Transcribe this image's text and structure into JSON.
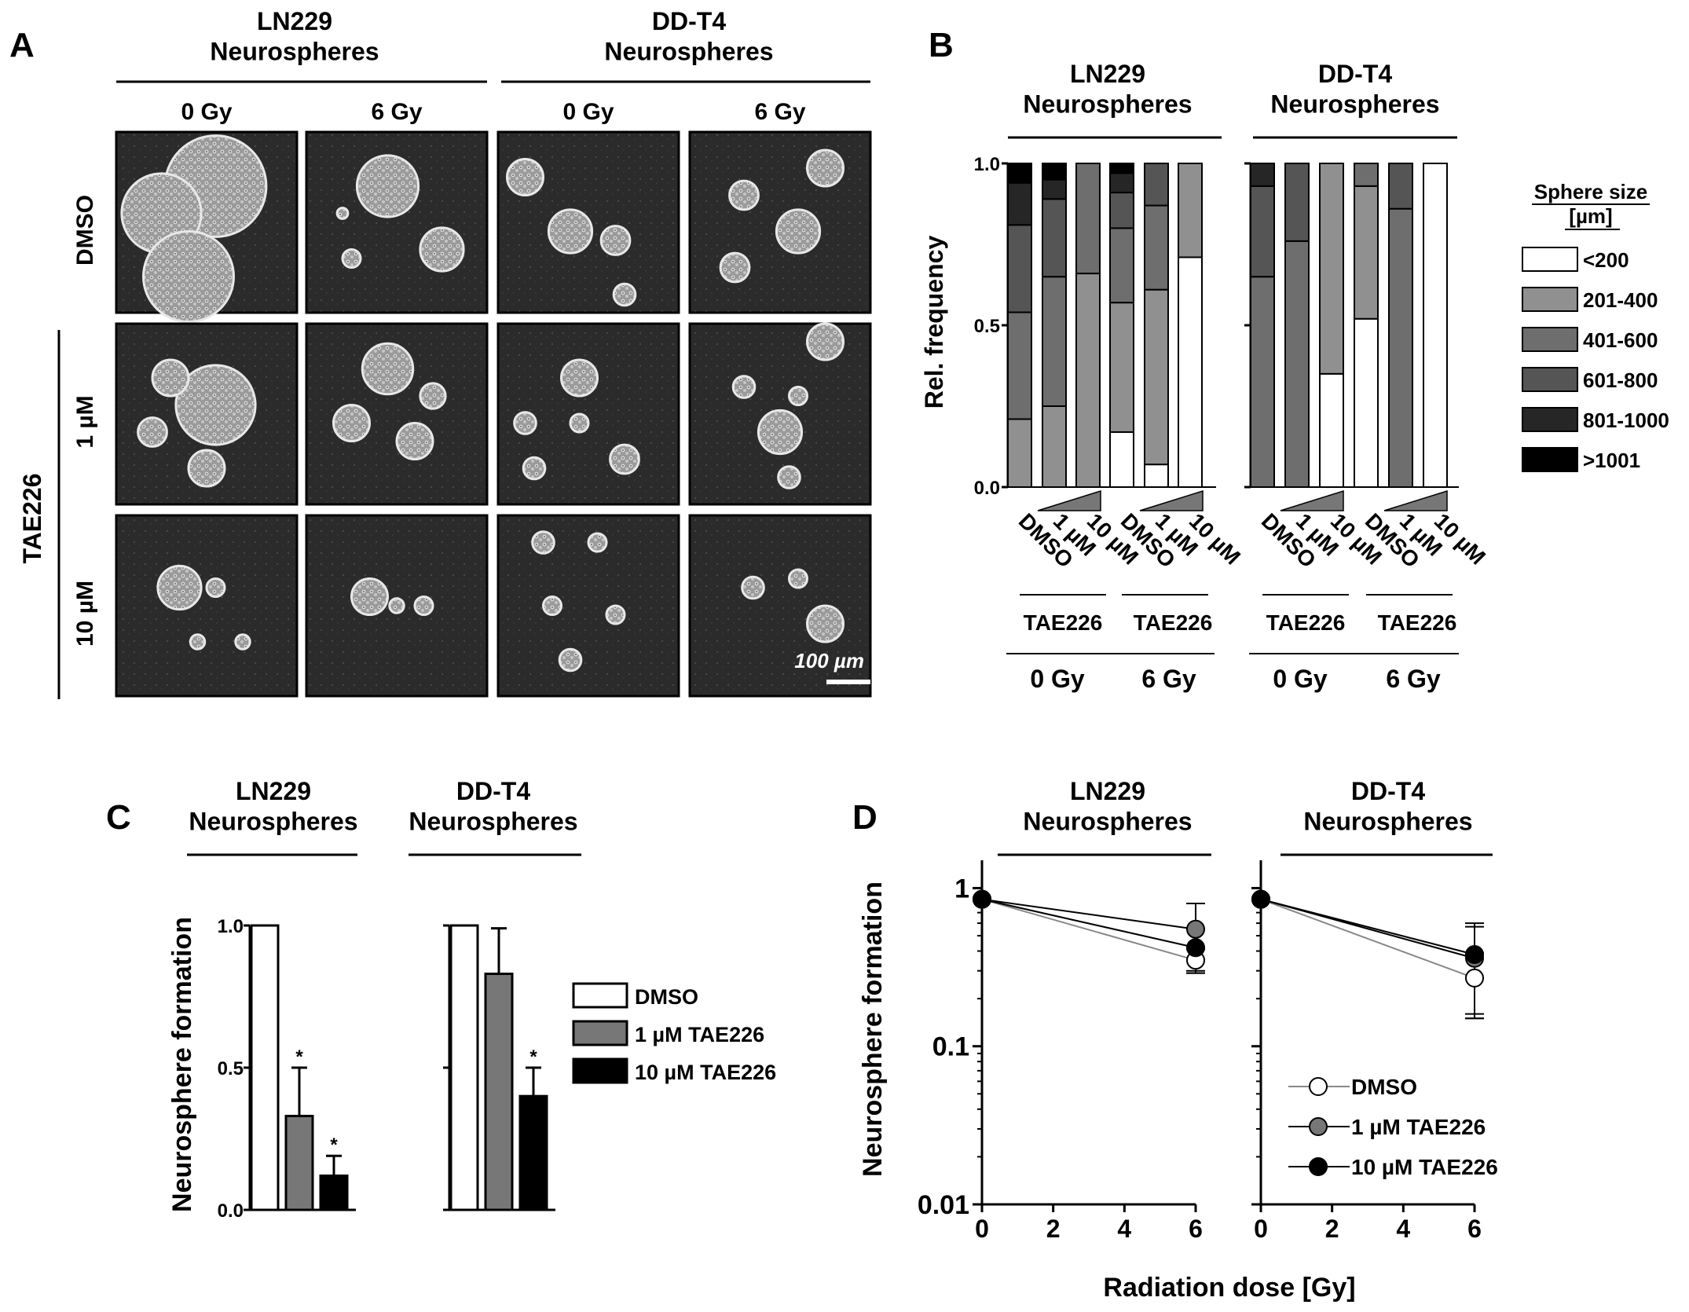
{
  "panels": {
    "a": {
      "letter": "A",
      "groups": [
        "LN229\nNeurospheres",
        "DD-T4\nNeurospheres"
      ],
      "columns": [
        "0 Gy",
        "6 Gy",
        "0 Gy",
        "6 Gy"
      ],
      "rows": [
        "DMSO",
        "1 µM",
        "10 µM"
      ],
      "drug_label": "TAE226",
      "scale_bar": "100 µm"
    },
    "b": {
      "letter": "B",
      "titles": [
        "LN229\nNeurospheres",
        "DD-T4\nNeurospheres"
      ],
      "ylabel": "Rel. frequency",
      "yticks": [
        "0.0",
        "0.5",
        "1.0"
      ],
      "xcat": [
        "DMSO",
        "1 µM",
        "10 µM"
      ],
      "drug_label": "TAE226",
      "dose_labels": [
        "0 Gy",
        "6 Gy"
      ],
      "legend_title": "Sphere size\n[µm]"
    },
    "c": {
      "letter": "C",
      "titles": [
        "LN229\nNeurospheres",
        "DD-T4\nNeurospheres"
      ],
      "ylabel": "Neurosphere formation",
      "yticks": [
        "0.0",
        "0.5",
        "1.0"
      ],
      "sig": "*"
    },
    "d": {
      "letter": "D",
      "titles": [
        "LN229\nNeurospheres",
        "DD-T4\nNeurospheres"
      ],
      "ylabel": "Neurosphere formation",
      "xlabel": "Radiation dose [Gy]",
      "yticks": [
        "0.01",
        "0.1",
        "1"
      ],
      "xticks": [
        "0",
        "2",
        "4",
        "6"
      ]
    }
  },
  "chart_data": [
    {
      "panel": "B",
      "type": "bar",
      "stacked": true,
      "categories": [
        "LN229 DMSO 0 Gy",
        "LN229 1 µM 0 Gy",
        "LN229 10 µM 0 Gy",
        "LN229 DMSO 6 Gy",
        "LN229 1 µM 6 Gy",
        "LN229 10 µM 6 Gy",
        "DD-T4 DMSO 0 Gy",
        "DD-T4 1 µM 0 Gy",
        "DD-T4 10 µM 0 Gy",
        "DD-T4 DMSO 6 Gy",
        "DD-T4 1 µM 6 Gy",
        "DD-T4 10 µM 6 Gy"
      ],
      "series": [
        {
          "name": "<200",
          "color": "#ffffff",
          "values": [
            0,
            0,
            0,
            0.17,
            0.07,
            0.71,
            0,
            0,
            0.35,
            0.52,
            0,
            1.0
          ]
        },
        {
          "name": "201-400",
          "color": "#909090",
          "values": [
            0.21,
            0.25,
            0.66,
            0.4,
            0.54,
            0.29,
            0,
            0,
            0.65,
            0.41,
            0,
            0
          ]
        },
        {
          "name": "401-600",
          "color": "#6e6e6e",
          "values": [
            0.33,
            0.4,
            0.34,
            0.23,
            0.26,
            0,
            0.65,
            0.76,
            0,
            0.07,
            0.86,
            0
          ]
        },
        {
          "name": "601-800",
          "color": "#555555",
          "values": [
            0.27,
            0.24,
            0,
            0.11,
            0.13,
            0,
            0.28,
            0.24,
            0,
            0,
            0.14,
            0
          ]
        },
        {
          "name": "801-1000",
          "color": "#262626",
          "values": [
            0.13,
            0.06,
            0,
            0.06,
            0,
            0,
            0.07,
            0,
            0,
            0,
            0,
            0
          ]
        },
        {
          "name": ">1001",
          "color": "#000000",
          "values": [
            0.06,
            0.05,
            0,
            0.03,
            0,
            0,
            0,
            0,
            0,
            0,
            0,
            0
          ]
        }
      ],
      "ylim": [
        0,
        1
      ]
    },
    {
      "panel": "C",
      "type": "bar",
      "groups": [
        "LN229",
        "DD-T4"
      ],
      "series": [
        {
          "name": "DMSO",
          "color": "#ffffff",
          "values": [
            1.0,
            1.0
          ],
          "err": [
            0,
            0
          ]
        },
        {
          "name": "1 µM TAE226",
          "color": "#777777",
          "values": [
            0.33,
            0.83
          ],
          "err": [
            0.17,
            0.16
          ]
        },
        {
          "name": "10 µM TAE226",
          "color": "#000000",
          "values": [
            0.12,
            0.4
          ],
          "err": [
            0.07,
            0.1
          ]
        }
      ],
      "significant": [
        [
          false,
          true,
          true
        ],
        [
          false,
          false,
          true
        ]
      ],
      "ylim": [
        0,
        1
      ]
    },
    {
      "panel": "D",
      "type": "line",
      "yscale": "log",
      "ylim": [
        0.01,
        1.5
      ],
      "xlim": [
        0,
        6
      ],
      "x": [
        0,
        6
      ],
      "groups": [
        {
          "series": [
            {
              "name": "DMSO",
              "fill": "#ffffff",
              "line": "#888888",
              "values": [
                0.85,
                0.35
              ],
              "err": [
                0,
                0.06
              ]
            },
            {
              "name": "1 µM TAE226",
              "fill": "#777777",
              "line": "#000000",
              "values": [
                0.85,
                0.55
              ],
              "err": [
                0,
                0.25
              ]
            },
            {
              "name": "10 µM TAE226",
              "fill": "#000000",
              "line": "#000000",
              "values": [
                0.85,
                0.42
              ],
              "err": [
                0,
                0.13
              ]
            }
          ]
        },
        {
          "series": [
            {
              "name": "DMSO",
              "fill": "#ffffff",
              "line": "#888888",
              "values": [
                0.85,
                0.27
              ],
              "err": [
                0,
                0.12
              ]
            },
            {
              "name": "1 µM TAE226",
              "fill": "#777777",
              "line": "#000000",
              "values": [
                0.85,
                0.36
              ],
              "err": [
                0,
                0.21
              ]
            },
            {
              "name": "10 µM TAE226",
              "fill": "#000000",
              "line": "#000000",
              "values": [
                0.85,
                0.38
              ],
              "err": [
                0,
                0.22
              ]
            }
          ]
        }
      ]
    }
  ]
}
